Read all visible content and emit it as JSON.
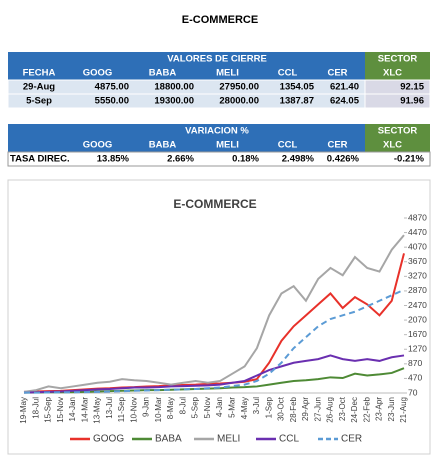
{
  "header": {
    "title": "E-COMMERCE"
  },
  "table1": {
    "group_header": "VALORES DE CIERRE",
    "sector_header": "SECTOR",
    "columns": [
      "FECHA",
      "GOOG",
      "BABA",
      "MELI",
      "CCL",
      "CER",
      "XLC"
    ],
    "rows": [
      [
        "29-Aug",
        "4875.00",
        "18800.00",
        "27950.00",
        "1354.05",
        "621.40",
        "92.15"
      ],
      [
        "5-Sep",
        "5550.00",
        "19300.00",
        "28000.00",
        "1387.87",
        "624.05",
        "91.96"
      ]
    ]
  },
  "table2": {
    "group_header": "VARIACION %",
    "sector_header": "SECTOR",
    "columns": [
      "GOOG",
      "BABA",
      "MELI",
      "CCL",
      "CER",
      "XLC"
    ],
    "rows": [
      [
        "TASA DIREC.",
        "13.85%",
        "2.66%",
        "0.18%",
        "2.498%",
        "0.426%",
        "-0.21%"
      ]
    ]
  },
  "chart_data": {
    "type": "line",
    "title": "E-COMMERCE",
    "categories": [
      "19-May",
      "18-Jul",
      "15-Sep",
      "15-Nov",
      "14-Jan",
      "14-Mar",
      "13-May",
      "13-Jul",
      "11-Sep",
      "10-Nov",
      "9-Jan",
      "10-Mar",
      "8-May",
      "8-Jul",
      "5-Sep",
      "5-Nov",
      "4-Jan",
      "5-Mar",
      "4-May",
      "3-Jul",
      "1-Sep",
      "30-Oct",
      "28-Feb",
      "29-Apr",
      "27-Jun",
      "26-Aug",
      "23-Oct",
      "24-Dec",
      "22-Feb",
      "23-Apr",
      "23-Jun",
      "21-Aug"
    ],
    "ylim": [
      70,
      4870
    ],
    "yticks": [
      70,
      470,
      870,
      1270,
      1670,
      2070,
      2470,
      2870,
      3270,
      3670,
      4070,
      4470,
      4870
    ],
    "series": [
      {
        "name": "GOOG",
        "color": "#e8312a",
        "dash": false,
        "values": [
          100,
          110,
          120,
          130,
          150,
          170,
          190,
          200,
          220,
          230,
          250,
          260,
          280,
          290,
          300,
          320,
          330,
          350,
          380,
          450,
          900,
          1500,
          1900,
          2200,
          2500,
          2800,
          2400,
          2700,
          2500,
          2200,
          2600,
          3900
        ]
      },
      {
        "name": "BABA",
        "color": "#4e8a35",
        "dash": false,
        "values": [
          80,
          85,
          90,
          90,
          95,
          100,
          110,
          120,
          130,
          140,
          150,
          150,
          160,
          170,
          180,
          190,
          200,
          220,
          230,
          250,
          300,
          350,
          400,
          420,
          450,
          500,
          480,
          600,
          550,
          580,
          620,
          750
        ]
      },
      {
        "name": "MELI",
        "color": "#a6a6a6",
        "dash": false,
        "values": [
          100,
          150,
          250,
          200,
          250,
          300,
          350,
          380,
          450,
          420,
          400,
          350,
          300,
          350,
          400,
          350,
          400,
          600,
          800,
          1300,
          2200,
          2800,
          3000,
          2600,
          3200,
          3500,
          3300,
          3800,
          3500,
          3400,
          4000,
          4400
        ]
      },
      {
        "name": "CCL",
        "color": "#6a2fb0",
        "dash": false,
        "values": [
          80,
          90,
          100,
          110,
          130,
          150,
          170,
          180,
          200,
          220,
          220,
          230,
          250,
          260,
          270,
          280,
          300,
          350,
          400,
          550,
          700,
          800,
          900,
          950,
          1000,
          1100,
          1000,
          950,
          1000,
          950,
          1050,
          1100
        ]
      },
      {
        "name": "CER",
        "color": "#5b9bd5",
        "dash": true,
        "values": [
          80,
          80,
          85,
          90,
          90,
          95,
          100,
          110,
          120,
          130,
          140,
          150,
          160,
          170,
          180,
          200,
          220,
          260,
          300,
          400,
          600,
          900,
          1300,
          1600,
          1900,
          2100,
          2200,
          2300,
          2450,
          2600,
          2750,
          2900
        ]
      }
    ]
  }
}
